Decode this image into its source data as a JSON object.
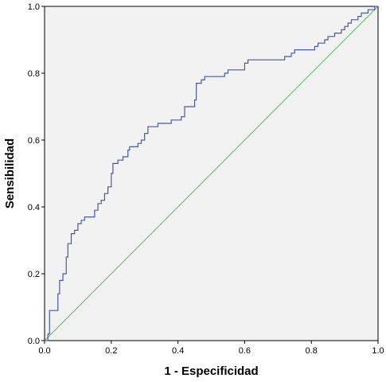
{
  "chart_data": {
    "type": "line",
    "title": "",
    "xlabel": "1 - Especificidad",
    "ylabel": "Sensibilidad",
    "xlim": [
      0.0,
      1.0
    ],
    "ylim": [
      0.0,
      1.0
    ],
    "xticks": [
      "0.0",
      "0.2",
      "0.4",
      "0.6",
      "0.8",
      "1.0"
    ],
    "yticks": [
      "0.0",
      "0.2",
      "0.4",
      "0.6",
      "0.8",
      "1.0"
    ],
    "grid": false,
    "plot_background": "#f2f2f2",
    "series": [
      {
        "color": "#4a5a9e",
        "points": [
          [
            0.0,
            0.0
          ],
          [
            0.01,
            0.0
          ],
          [
            0.01,
            0.02
          ],
          [
            0.015,
            0.02
          ],
          [
            0.015,
            0.09
          ],
          [
            0.04,
            0.09
          ],
          [
            0.04,
            0.14
          ],
          [
            0.045,
            0.14
          ],
          [
            0.045,
            0.18
          ],
          [
            0.055,
            0.18
          ],
          [
            0.055,
            0.2
          ],
          [
            0.065,
            0.2
          ],
          [
            0.065,
            0.25
          ],
          [
            0.07,
            0.25
          ],
          [
            0.07,
            0.29
          ],
          [
            0.08,
            0.29
          ],
          [
            0.08,
            0.32
          ],
          [
            0.09,
            0.32
          ],
          [
            0.09,
            0.33
          ],
          [
            0.1,
            0.33
          ],
          [
            0.1,
            0.35
          ],
          [
            0.11,
            0.35
          ],
          [
            0.11,
            0.36
          ],
          [
            0.12,
            0.36
          ],
          [
            0.12,
            0.37
          ],
          [
            0.15,
            0.37
          ],
          [
            0.15,
            0.39
          ],
          [
            0.16,
            0.39
          ],
          [
            0.16,
            0.41
          ],
          [
            0.17,
            0.41
          ],
          [
            0.17,
            0.42
          ],
          [
            0.18,
            0.42
          ],
          [
            0.18,
            0.44
          ],
          [
            0.19,
            0.44
          ],
          [
            0.19,
            0.46
          ],
          [
            0.2,
            0.46
          ],
          [
            0.2,
            0.5
          ],
          [
            0.205,
            0.5
          ],
          [
            0.205,
            0.53
          ],
          [
            0.22,
            0.53
          ],
          [
            0.22,
            0.54
          ],
          [
            0.235,
            0.54
          ],
          [
            0.235,
            0.55
          ],
          [
            0.25,
            0.55
          ],
          [
            0.25,
            0.57
          ],
          [
            0.255,
            0.57
          ],
          [
            0.255,
            0.58
          ],
          [
            0.28,
            0.58
          ],
          [
            0.28,
            0.59
          ],
          [
            0.29,
            0.59
          ],
          [
            0.29,
            0.6
          ],
          [
            0.3,
            0.6
          ],
          [
            0.3,
            0.62
          ],
          [
            0.31,
            0.62
          ],
          [
            0.31,
            0.64
          ],
          [
            0.34,
            0.64
          ],
          [
            0.34,
            0.65
          ],
          [
            0.38,
            0.65
          ],
          [
            0.38,
            0.66
          ],
          [
            0.41,
            0.66
          ],
          [
            0.41,
            0.67
          ],
          [
            0.42,
            0.67
          ],
          [
            0.42,
            0.7
          ],
          [
            0.45,
            0.7
          ],
          [
            0.45,
            0.72
          ],
          [
            0.455,
            0.72
          ],
          [
            0.455,
            0.77
          ],
          [
            0.47,
            0.77
          ],
          [
            0.47,
            0.78
          ],
          [
            0.48,
            0.78
          ],
          [
            0.48,
            0.79
          ],
          [
            0.54,
            0.79
          ],
          [
            0.54,
            0.8
          ],
          [
            0.55,
            0.8
          ],
          [
            0.55,
            0.81
          ],
          [
            0.6,
            0.81
          ],
          [
            0.6,
            0.83
          ],
          [
            0.61,
            0.83
          ],
          [
            0.61,
            0.84
          ],
          [
            0.72,
            0.84
          ],
          [
            0.72,
            0.85
          ],
          [
            0.74,
            0.85
          ],
          [
            0.74,
            0.86
          ],
          [
            0.75,
            0.86
          ],
          [
            0.75,
            0.87
          ],
          [
            0.81,
            0.87
          ],
          [
            0.81,
            0.88
          ],
          [
            0.82,
            0.88
          ],
          [
            0.82,
            0.89
          ],
          [
            0.84,
            0.89
          ],
          [
            0.84,
            0.9
          ],
          [
            0.85,
            0.9
          ],
          [
            0.85,
            0.91
          ],
          [
            0.87,
            0.91
          ],
          [
            0.87,
            0.92
          ],
          [
            0.89,
            0.92
          ],
          [
            0.89,
            0.93
          ],
          [
            0.9,
            0.93
          ],
          [
            0.9,
            0.94
          ],
          [
            0.91,
            0.94
          ],
          [
            0.91,
            0.95
          ],
          [
            0.92,
            0.95
          ],
          [
            0.92,
            0.96
          ],
          [
            0.94,
            0.96
          ],
          [
            0.94,
            0.97
          ],
          [
            0.95,
            0.97
          ],
          [
            0.95,
            0.98
          ],
          [
            0.97,
            0.98
          ],
          [
            0.97,
            0.99
          ],
          [
            0.99,
            0.99
          ],
          [
            0.99,
            1.0
          ],
          [
            1.0,
            1.0
          ]
        ]
      },
      {
        "color": "#5bb85b",
        "points": [
          [
            0.0,
            0.0
          ],
          [
            1.0,
            1.0
          ]
        ]
      }
    ]
  }
}
